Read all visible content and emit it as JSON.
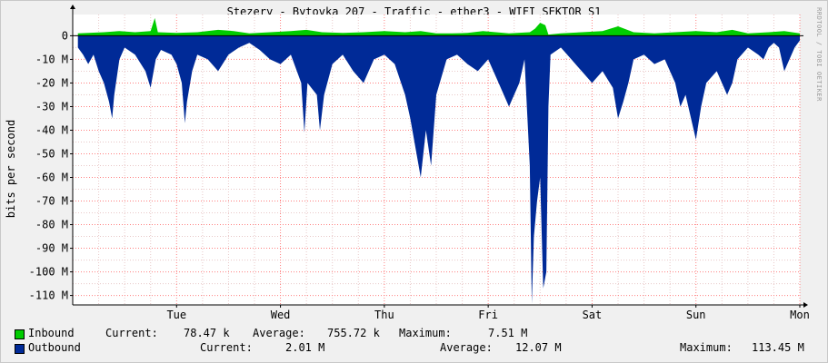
{
  "title": "Stezery - Bytovka 207 - Traffic - ether3 - WIFI SEKTOR S1",
  "watermark": "RRDTOOL / TOBI OETIKER",
  "colors": {
    "inbound": "#00cc00",
    "outbound": "#002a97",
    "grid_major": "#ff8080",
    "grid_minor": "#e8c8c8",
    "axis": "#000000",
    "background": "#f0f0f0",
    "plot_background": "#ffffff"
  },
  "legend": {
    "inbound": {
      "name": "Inbound",
      "current_label": "Current:",
      "current": "78.47 k",
      "average_label": "Average:",
      "average": "755.72 k",
      "maximum_label": "Maximum:",
      "maximum": "7.51 M"
    },
    "outbound": {
      "name": "Outbound",
      "current_label": "Current:",
      "current": "2.01 M",
      "average_label": "Average:",
      "average": "12.07 M",
      "maximum_label": "Maximum:",
      "maximum": "113.45 M"
    }
  },
  "chart_data": {
    "type": "area",
    "title": "Stezery - Bytovka 207 - Traffic - ether3 - WIFI SEKTOR S1",
    "ylabel": "bits per second",
    "ylim": [
      -114,
      9
    ],
    "y_unit": "M bits/s",
    "y_ticks": [
      0,
      -10,
      -20,
      -30,
      -40,
      -50,
      -60,
      -70,
      -80,
      -90,
      -100,
      -110
    ],
    "y_tick_labels": [
      "0",
      "-10 M",
      "-20 M",
      "-30 M",
      "-40 M",
      "-50 M",
      "-60 M",
      "-70 M",
      "-80 M",
      "-90 M",
      "-100 M",
      "-110 M"
    ],
    "x_ticks": [
      1,
      2,
      3,
      4,
      5,
      6,
      7
    ],
    "x_tick_labels": [
      "Tue",
      "Wed",
      "Thu",
      "Fri",
      "Sat",
      "Sun",
      "Mon"
    ],
    "xlim": [
      0.05,
      7
    ],
    "grid": true,
    "series": [
      {
        "name": "Inbound",
        "points": [
          [
            0.05,
            1
          ],
          [
            0.15,
            1.2
          ],
          [
            0.3,
            1.5
          ],
          [
            0.45,
            2
          ],
          [
            0.6,
            1.5
          ],
          [
            0.75,
            2
          ],
          [
            0.79,
            7.5
          ],
          [
            0.82,
            1.5
          ],
          [
            1.0,
            1.2
          ],
          [
            1.2,
            1.5
          ],
          [
            1.4,
            2.5
          ],
          [
            1.55,
            2
          ],
          [
            1.7,
            1
          ],
          [
            1.9,
            1.5
          ],
          [
            2.1,
            2
          ],
          [
            2.25,
            2.5
          ],
          [
            2.4,
            1.5
          ],
          [
            2.6,
            1.2
          ],
          [
            2.8,
            1.5
          ],
          [
            3.0,
            2
          ],
          [
            3.2,
            1.5
          ],
          [
            3.35,
            2
          ],
          [
            3.5,
            1
          ],
          [
            3.65,
            1
          ],
          [
            3.8,
            1.2
          ],
          [
            3.95,
            2
          ],
          [
            4.2,
            1
          ],
          [
            4.4,
            1.5
          ],
          [
            4.45,
            3
          ],
          [
            4.5,
            5.5
          ],
          [
            4.55,
            4.5
          ],
          [
            4.58,
            0.5
          ],
          [
            4.7,
            1
          ],
          [
            4.9,
            1.5
          ],
          [
            5.1,
            2
          ],
          [
            5.25,
            4
          ],
          [
            5.4,
            1.5
          ],
          [
            5.6,
            1
          ],
          [
            5.8,
            1.5
          ],
          [
            6.0,
            2
          ],
          [
            6.2,
            1.5
          ],
          [
            6.35,
            2.5
          ],
          [
            6.5,
            1
          ],
          [
            6.7,
            1.5
          ],
          [
            6.85,
            2
          ],
          [
            7.0,
            1
          ]
        ]
      },
      {
        "name": "Outbound",
        "points": [
          [
            0.05,
            -5
          ],
          [
            0.1,
            -8
          ],
          [
            0.15,
            -12
          ],
          [
            0.2,
            -8
          ],
          [
            0.25,
            -15
          ],
          [
            0.3,
            -20
          ],
          [
            0.35,
            -28
          ],
          [
            0.38,
            -35
          ],
          [
            0.4,
            -25
          ],
          [
            0.45,
            -10
          ],
          [
            0.5,
            -5
          ],
          [
            0.6,
            -8
          ],
          [
            0.7,
            -15
          ],
          [
            0.75,
            -22
          ],
          [
            0.8,
            -10
          ],
          [
            0.85,
            -6
          ],
          [
            0.95,
            -8
          ],
          [
            1.0,
            -12
          ],
          [
            1.05,
            -20
          ],
          [
            1.08,
            -37
          ],
          [
            1.1,
            -28
          ],
          [
            1.15,
            -15
          ],
          [
            1.2,
            -8
          ],
          [
            1.3,
            -10
          ],
          [
            1.4,
            -15
          ],
          [
            1.5,
            -8
          ],
          [
            1.6,
            -5
          ],
          [
            1.7,
            -3
          ],
          [
            1.8,
            -6
          ],
          [
            1.9,
            -10
          ],
          [
            2.0,
            -12
          ],
          [
            2.1,
            -8
          ],
          [
            2.2,
            -20
          ],
          [
            2.23,
            -41
          ],
          [
            2.26,
            -20
          ],
          [
            2.35,
            -25
          ],
          [
            2.38,
            -40
          ],
          [
            2.42,
            -25
          ],
          [
            2.5,
            -12
          ],
          [
            2.6,
            -8
          ],
          [
            2.7,
            -15
          ],
          [
            2.8,
            -20
          ],
          [
            2.9,
            -10
          ],
          [
            3.0,
            -8
          ],
          [
            3.1,
            -12
          ],
          [
            3.2,
            -25
          ],
          [
            3.25,
            -35
          ],
          [
            3.35,
            -60
          ],
          [
            3.4,
            -40
          ],
          [
            3.45,
            -55
          ],
          [
            3.5,
            -25
          ],
          [
            3.6,
            -10
          ],
          [
            3.7,
            -8
          ],
          [
            3.8,
            -12
          ],
          [
            3.9,
            -15
          ],
          [
            4.0,
            -10
          ],
          [
            4.1,
            -20
          ],
          [
            4.2,
            -30
          ],
          [
            4.3,
            -20
          ],
          [
            4.35,
            -10
          ],
          [
            4.4,
            -55
          ],
          [
            4.42,
            -113.45
          ],
          [
            4.44,
            -85
          ],
          [
            4.47,
            -70
          ],
          [
            4.5,
            -60
          ],
          [
            4.53,
            -107
          ],
          [
            4.56,
            -100
          ],
          [
            4.58,
            -30
          ],
          [
            4.6,
            -8
          ],
          [
            4.7,
            -5
          ],
          [
            4.8,
            -10
          ],
          [
            4.9,
            -15
          ],
          [
            5.0,
            -20
          ],
          [
            5.1,
            -15
          ],
          [
            5.2,
            -22
          ],
          [
            5.25,
            -35
          ],
          [
            5.3,
            -28
          ],
          [
            5.35,
            -20
          ],
          [
            5.4,
            -10
          ],
          [
            5.5,
            -8
          ],
          [
            5.6,
            -12
          ],
          [
            5.7,
            -10
          ],
          [
            5.8,
            -20
          ],
          [
            5.85,
            -30
          ],
          [
            5.9,
            -25
          ],
          [
            6.0,
            -44
          ],
          [
            6.05,
            -30
          ],
          [
            6.1,
            -20
          ],
          [
            6.2,
            -15
          ],
          [
            6.3,
            -25
          ],
          [
            6.35,
            -20
          ],
          [
            6.4,
            -10
          ],
          [
            6.5,
            -5
          ],
          [
            6.6,
            -8
          ],
          [
            6.65,
            -10
          ],
          [
            6.7,
            -5
          ],
          [
            6.75,
            -3
          ],
          [
            6.8,
            -5
          ],
          [
            6.85,
            -15
          ],
          [
            6.9,
            -10
          ],
          [
            6.95,
            -5
          ],
          [
            7.0,
            -2
          ]
        ]
      }
    ]
  }
}
